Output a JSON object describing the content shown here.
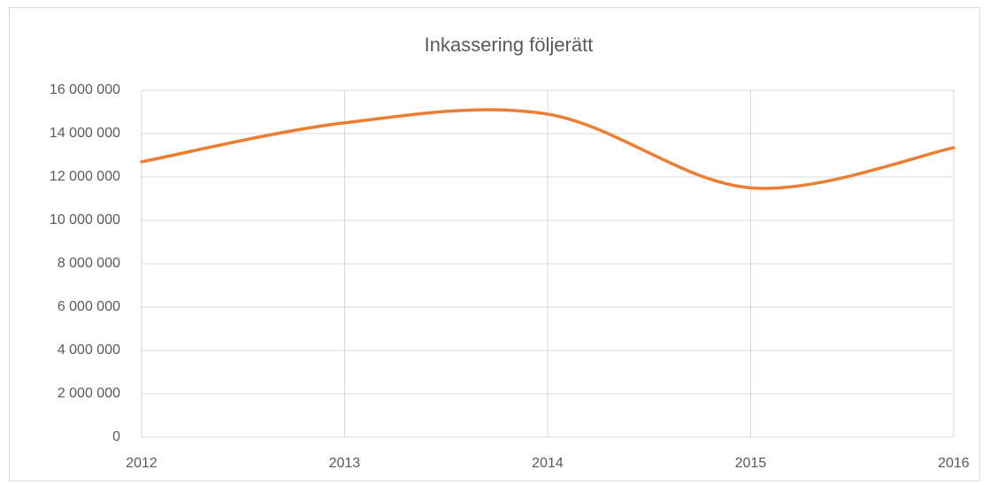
{
  "chart_data": {
    "type": "line",
    "title": "Inkassering följerätt",
    "x": [
      2012,
      2013,
      2014,
      2015,
      2016
    ],
    "series": [
      {
        "name": "Inkassering följerätt",
        "color": "#ed7d31",
        "values": [
          12700000,
          14500000,
          14900000,
          11500000,
          13350000
        ]
      }
    ],
    "smooth": true,
    "xlim": [
      2012,
      2016
    ],
    "xticks": [
      2012,
      2013,
      2014,
      2015,
      2016
    ],
    "ylim": [
      0,
      16000000
    ],
    "yticks": [
      0,
      {
        "value": 2000000,
        "label": "2 000 000"
      },
      {
        "value": 4000000,
        "label": "4 000 000"
      },
      {
        "value": 6000000,
        "label": "6 000 000"
      },
      {
        "value": 8000000,
        "label": "8 000 000"
      },
      {
        "value": 10000000,
        "label": "10 000 000"
      },
      {
        "value": 12000000,
        "label": "12 000 000"
      },
      {
        "value": 14000000,
        "label": "14 000 000"
      },
      {
        "value": 16000000,
        "label": "16 000 000"
      }
    ],
    "grid": true
  }
}
